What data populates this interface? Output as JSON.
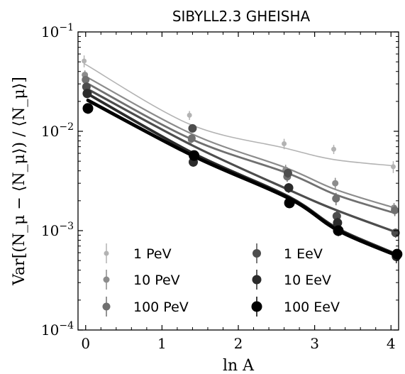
{
  "chart_data": {
    "type": "scatter",
    "title": "SIBYLL2.3 GHEISHA",
    "xlabel": "ln A",
    "ylabel": "Var[(N_μ − ⟨N_μ⟩) / ⟨N_μ⟩]",
    "yscale": "log",
    "xlim": [
      -0.1,
      4.1
    ],
    "ylim": [
      0.0001,
      0.1
    ],
    "x_ticks": [
      0,
      1,
      2,
      3,
      4
    ],
    "x_tick_labels": [
      "0",
      "1",
      "2",
      "3",
      "4"
    ],
    "y_ticks": [
      0.0001,
      0.001,
      0.01,
      0.1
    ],
    "y_tick_labels": [
      {
        "base": "10",
        "exp": "−4"
      },
      {
        "base": "10",
        "exp": "−3"
      },
      {
        "base": "10",
        "exp": "−2"
      },
      {
        "base": "10",
        "exp": "−1"
      }
    ],
    "legend_position": "bottom",
    "fit_lines": true,
    "series": [
      {
        "name": "1 PeV",
        "color": "#b3b3b3",
        "x": [
          -0.02,
          1.36,
          2.6,
          3.25,
          4.03
        ],
        "y": [
          0.051,
          0.0145,
          0.0075,
          0.0066,
          0.0044
        ],
        "err": [
          0.007,
          0.0015,
          0.0009,
          0.0007,
          0.0006
        ],
        "fit": [
          0.048,
          0.0118,
          0.0068,
          0.0052,
          0.0045
        ],
        "marker_size": 3.5,
        "line_width": 1.6
      },
      {
        "name": "10 PeV",
        "color": "#8c8c8c",
        "x": [
          -0.01,
          1.38,
          2.62,
          3.27,
          4.04
        ],
        "y": [
          0.037,
          0.0082,
          0.0041,
          0.003,
          0.0017
        ],
        "err": [
          0.004,
          0.001,
          0.0005,
          0.0004,
          0.0002
        ],
        "fit": [
          0.036,
          0.0095,
          0.0043,
          0.0026,
          0.0017
        ],
        "marker_size": 4.5,
        "line_width": 2.2
      },
      {
        "name": "100 PeV",
        "color": "#707070",
        "x": [
          0.0,
          1.39,
          2.64,
          3.28,
          4.05
        ],
        "y": [
          0.033,
          0.0085,
          0.0035,
          0.0021,
          0.0016
        ],
        "err": [
          0.003,
          0.0008,
          0.0004,
          0.0003,
          0.0002
        ],
        "fit": [
          0.031,
          0.0083,
          0.0038,
          0.0023,
          0.0015
        ],
        "marker_size": 5.5,
        "line_width": 2.8
      },
      {
        "name": "1 EeV",
        "color": "#4d4d4d",
        "x": [
          0.01,
          1.4,
          2.65,
          3.29,
          4.06
        ],
        "y": [
          0.028,
          0.0107,
          0.0038,
          0.0014,
          0.00095
        ],
        "err": [
          0.003,
          0.001,
          0.0004,
          0.0002,
          0.0001
        ],
        "fit": [
          0.027,
          0.0072,
          0.0026,
          0.0016,
          0.00097
        ],
        "marker_size": 6.0,
        "line_width": 3.2
      },
      {
        "name": "10 EeV",
        "color": "#2b2b2b",
        "x": [
          0.02,
          1.41,
          2.66,
          3.3,
          4.07
        ],
        "y": [
          0.024,
          0.0049,
          0.0027,
          0.0012,
          0.00055
        ],
        "err": [
          0.0025,
          0.0005,
          0.0003,
          0.00015,
          8e-05
        ],
        "fit": [
          0.024,
          0.006,
          0.0022,
          0.00105,
          0.00058
        ],
        "marker_size": 6.5,
        "line_width": 3.8
      },
      {
        "name": "100 EeV",
        "color": "#000000",
        "x": [
          0.03,
          1.42,
          2.67,
          3.31,
          4.08
        ],
        "y": [
          0.017,
          0.0057,
          0.0019,
          0.001,
          0.00058
        ],
        "err": [
          0.002,
          0.0006,
          0.0002,
          0.00012,
          7e-05
        ],
        "fit": [
          0.0205,
          0.0056,
          0.0021,
          0.001,
          0.00056
        ],
        "marker_size": 7.5,
        "line_width": 4.8
      }
    ]
  }
}
